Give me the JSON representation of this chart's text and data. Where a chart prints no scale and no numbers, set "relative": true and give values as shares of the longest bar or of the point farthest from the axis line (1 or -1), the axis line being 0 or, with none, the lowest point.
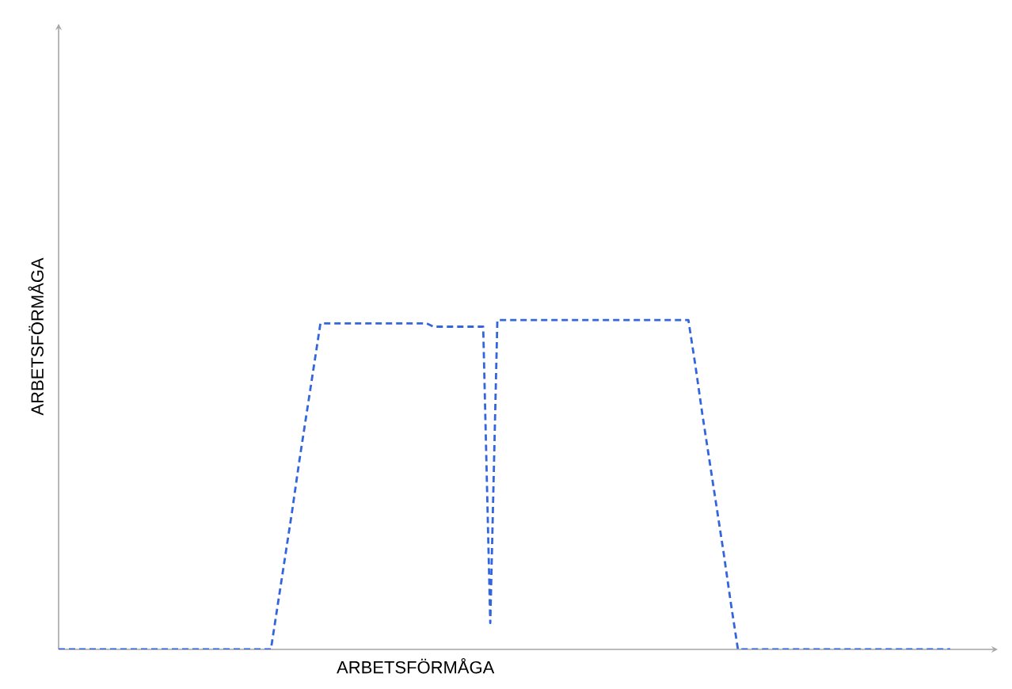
{
  "chart_data": {
    "type": "line",
    "xlabel": "ARBETSFÖRMÅGA",
    "ylabel": "ARBETSFÖRMÅGA",
    "relative": true,
    "line_style": "dashed",
    "marker": "none",
    "categories": [
      null,
      null,
      null,
      null,
      null,
      null,
      null,
      null,
      null,
      null,
      null,
      null,
      null,
      null,
      null,
      null,
      null,
      null,
      null,
      null,
      null,
      null,
      null,
      null,
      null,
      null,
      null,
      null,
      null,
      null,
      null,
      null,
      null,
      null,
      null,
      null,
      null,
      null,
      null,
      null,
      null,
      null,
      null,
      null,
      null,
      null,
      null,
      null,
      null,
      null,
      null,
      null,
      null,
      null,
      null,
      null,
      null,
      null,
      null,
      null,
      null,
      null,
      null,
      null,
      null,
      null,
      null,
      null,
      null,
      null,
      null,
      null,
      null,
      null,
      null,
      null,
      null,
      null,
      null,
      null,
      null,
      null,
      null,
      null,
      null,
      null,
      null,
      null,
      null,
      null,
      null,
      null,
      null,
      null,
      null,
      null,
      null,
      null,
      null,
      null,
      null,
      null,
      null,
      null,
      null,
      null,
      null,
      null,
      null,
      null,
      null,
      null,
      null,
      null,
      null,
      null,
      null,
      null,
      null,
      null,
      null,
      null,
      null,
      null,
      null,
      null,
      null
    ],
    "series": [
      {
        "color": "#3366dd",
        "values": [
          0,
          0,
          0,
          0,
          0,
          0,
          0,
          0,
          0,
          0,
          0,
          0,
          0,
          0,
          0,
          0,
          0,
          0,
          0,
          0,
          0,
          0,
          0,
          0,
          0,
          0,
          0,
          0,
          0,
          0,
          0,
          0.14,
          0.28,
          0.42,
          0.57,
          0.71,
          0.85,
          0.99,
          0.99,
          0.99,
          0.99,
          0.99,
          0.99,
          0.99,
          0.99,
          0.99,
          0.99,
          0.99,
          0.99,
          0.99,
          0.99,
          0.99,
          0.99,
          0.98,
          0.98,
          0.98,
          0.98,
          0.98,
          0.98,
          0.98,
          0.98,
          0.08,
          1,
          1,
          1,
          1,
          1,
          1,
          1,
          1,
          1,
          1,
          1,
          1,
          1,
          1,
          1,
          1,
          1,
          1,
          1,
          1,
          1,
          1,
          1,
          1,
          1,
          1,
          1,
          1,
          0.86,
          0.71,
          0.57,
          0.43,
          0.29,
          0.14,
          0,
          0,
          0,
          0,
          0,
          0,
          0,
          0,
          0,
          0,
          0,
          0,
          0,
          0,
          0,
          0,
          0,
          0,
          0,
          0,
          0,
          0,
          0,
          0,
          0,
          0,
          0,
          0,
          0,
          0,
          0
        ]
      }
    ]
  }
}
